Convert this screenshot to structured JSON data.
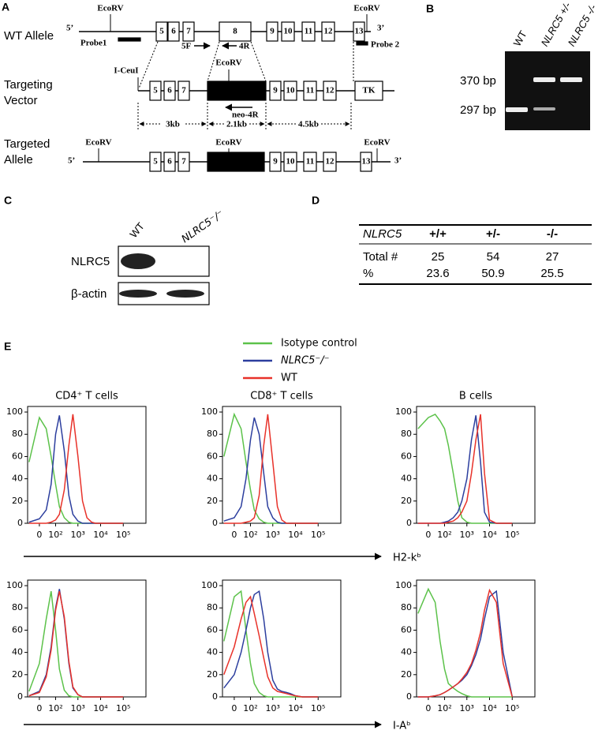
{
  "panel_a": {
    "label": "A",
    "wt_allele": {
      "title": "WT Allele",
      "ends": [
        "5’",
        "3’"
      ],
      "ecorv": [
        "EcoRV",
        "EcoRV"
      ],
      "exons": [
        "5",
        "6",
        "7",
        "8",
        "9",
        "10",
        "11",
        "12",
        "13"
      ],
      "probes": [
        "Probe1",
        "Probe 2"
      ],
      "primers": [
        "5F",
        "4R"
      ]
    },
    "targeting_vector": {
      "title": [
        "Targeting",
        "Vector"
      ],
      "site": "I-CeuI",
      "ecorv": "EcoRV",
      "exons": [
        "5",
        "6",
        "7",
        "9",
        "10",
        "11",
        "12"
      ],
      "tk": "TK",
      "primer": "neo-4R",
      "distances": [
        "3kb",
        "2.1kb",
        "4.5kb"
      ]
    },
    "targeted_allele": {
      "title": [
        "Targeted",
        "Allele"
      ],
      "ends": [
        "5’",
        "3’"
      ],
      "ecorv": [
        "EcoRV",
        "EcoRV",
        "EcoRV"
      ],
      "exons": [
        "5",
        "6",
        "7",
        "9",
        "10",
        "11",
        "12",
        "13"
      ]
    }
  },
  "panel_b": {
    "label": "B",
    "lanes": [
      "WT",
      "NLRC5 +/-",
      "NLRC5 -/-"
    ],
    "sizes": [
      "370 bp",
      "297 bp"
    ]
  },
  "panel_c": {
    "label": "C",
    "lanes": [
      "WT",
      "NLRC5⁻/⁻"
    ],
    "rows": [
      "NLRC5",
      "β-actin"
    ]
  },
  "panel_d": {
    "label": "D",
    "header": [
      "NLRC5",
      "+/+",
      "+/-",
      "-/-"
    ],
    "rows": [
      [
        "Total #",
        25,
        54,
        27
      ],
      [
        "%",
        23.6,
        50.9,
        25.5
      ]
    ]
  },
  "panel_e": {
    "label": "E",
    "xlabels": [
      "H2-kᵇ",
      "I-Aᵇ"
    ]
  },
  "chart_data": [
    {
      "type": "line",
      "title": "CD4⁺ T cells",
      "x_scale": "biexponential",
      "xlim": [
        -60,
        1000000
      ],
      "ylim": [
        0,
        105
      ],
      "xticks": [
        0,
        {
          "value": 100,
          "label": "10²"
        },
        {
          "value": 1000,
          "label": "10³"
        },
        {
          "value": 10000,
          "label": "10⁴"
        },
        {
          "value": 100000,
          "label": "10⁵"
        }
      ],
      "yticks": [
        0,
        20,
        40,
        60,
        80,
        100
      ],
      "x": [
        -50,
        0,
        30,
        60,
        100,
        150,
        250,
        400,
        600,
        1000,
        1600,
        2500,
        4000,
        6000,
        10000,
        20000,
        40000,
        100000
      ],
      "series": [
        {
          "name": "Isotype control",
          "color": "#5cc24a",
          "values": [
            55,
            95,
            85,
            60,
            35,
            15,
            5,
            1,
            0,
            0,
            0,
            0,
            0,
            0,
            0,
            0,
            0,
            0
          ]
        },
        {
          "name": "NLRC5⁻/⁻",
          "color": "#2c3e9e",
          "values": [
            1,
            4,
            12,
            35,
            80,
            97,
            65,
            25,
            8,
            2,
            0,
            0,
            0,
            0,
            0,
            0,
            0,
            0
          ]
        },
        {
          "name": "WT",
          "color": "#e8322a",
          "values": [
            0,
            0,
            0,
            1,
            3,
            8,
            30,
            70,
            98,
            60,
            20,
            5,
            1,
            0,
            0,
            0,
            0,
            0
          ]
        }
      ]
    },
    {
      "type": "line",
      "title": "CD8⁺ T cells",
      "x_scale": "biexponential",
      "xlim": [
        -60,
        1000000
      ],
      "ylim": [
        0,
        105
      ],
      "xticks": [
        0,
        {
          "value": 100,
          "label": "10²"
        },
        {
          "value": 1000,
          "label": "10³"
        },
        {
          "value": 10000,
          "label": "10⁴"
        },
        {
          "value": 100000,
          "label": "10⁵"
        }
      ],
      "yticks": [
        0,
        20,
        40,
        60,
        80,
        100
      ],
      "x": [
        -50,
        0,
        30,
        60,
        100,
        150,
        250,
        400,
        600,
        1000,
        1600,
        2500,
        4000,
        6000,
        10000,
        20000,
        40000,
        100000
      ],
      "series": [
        {
          "name": "Isotype control",
          "color": "#5cc24a",
          "values": [
            60,
            98,
            85,
            55,
            30,
            12,
            4,
            1,
            0,
            0,
            0,
            0,
            0,
            0,
            0,
            0,
            0,
            0
          ]
        },
        {
          "name": "NLRC5⁻/⁻",
          "color": "#2c3e9e",
          "values": [
            2,
            5,
            15,
            40,
            75,
            95,
            80,
            45,
            15,
            5,
            1,
            0,
            0,
            0,
            0,
            0,
            0,
            0
          ]
        },
        {
          "name": "WT",
          "color": "#e8322a",
          "values": [
            0,
            0,
            0,
            1,
            2,
            5,
            25,
            70,
            98,
            55,
            15,
            3,
            0,
            0,
            0,
            0,
            0,
            0
          ]
        }
      ]
    },
    {
      "type": "line",
      "title": "B cells",
      "x_scale": "biexponential",
      "xlim": [
        -60,
        1000000
      ],
      "ylim": [
        0,
        105
      ],
      "xticks": [
        0,
        {
          "value": 100,
          "label": "10²"
        },
        {
          "value": 1000,
          "label": "10³"
        },
        {
          "value": 10000,
          "label": "10⁴"
        },
        {
          "value": 100000,
          "label": "10⁵"
        }
      ],
      "yticks": [
        0,
        20,
        40,
        60,
        80,
        100
      ],
      "x": [
        -50,
        0,
        30,
        60,
        100,
        150,
        250,
        400,
        600,
        1000,
        1600,
        2500,
        4000,
        6000,
        10000,
        20000,
        40000,
        100000
      ],
      "series": [
        {
          "name": "Isotype control",
          "color": "#5cc24a",
          "values": [
            85,
            95,
            98,
            92,
            85,
            70,
            45,
            20,
            5,
            1,
            0,
            0,
            0,
            0,
            0,
            0,
            0,
            0
          ]
        },
        {
          "name": "NLRC5⁻/⁻",
          "color": "#2c3e9e",
          "values": [
            0,
            0,
            0,
            0,
            1,
            2,
            5,
            10,
            20,
            40,
            75,
            97,
            55,
            10,
            1,
            0,
            0,
            0
          ]
        },
        {
          "name": "WT",
          "color": "#e8322a",
          "values": [
            0,
            0,
            0,
            0,
            0,
            1,
            2,
            5,
            10,
            20,
            45,
            75,
            98,
            45,
            3,
            0,
            0,
            0
          ]
        }
      ]
    },
    {
      "type": "line",
      "x_scale": "biexponential",
      "xlim": [
        -60,
        1000000
      ],
      "ylim": [
        0,
        105
      ],
      "xticks": [
        0,
        {
          "value": 100,
          "label": "10²"
        },
        {
          "value": 1000,
          "label": "10³"
        },
        {
          "value": 10000,
          "label": "10⁴"
        },
        {
          "value": 100000,
          "label": "10⁵"
        }
      ],
      "yticks": [
        0,
        20,
        40,
        60,
        80,
        100
      ],
      "x": [
        -50,
        0,
        30,
        60,
        100,
        150,
        250,
        400,
        600,
        1000,
        1600,
        2500,
        4000,
        6000,
        10000,
        20000,
        40000,
        100000
      ],
      "series": [
        {
          "name": "Isotype control",
          "color": "#5cc24a",
          "values": [
            5,
            30,
            70,
            95,
            60,
            25,
            6,
            1,
            0,
            0,
            0,
            0,
            0,
            0,
            0,
            0,
            0,
            0
          ]
        },
        {
          "name": "NLRC5⁻/⁻",
          "color": "#2c3e9e",
          "values": [
            1,
            5,
            20,
            45,
            80,
            97,
            70,
            30,
            8,
            2,
            0,
            0,
            0,
            0,
            0,
            0,
            0,
            0
          ]
        },
        {
          "name": "WT",
          "color": "#e8322a",
          "values": [
            1,
            4,
            18,
            42,
            78,
            95,
            72,
            32,
            9,
            2,
            0,
            0,
            0,
            0,
            0,
            0,
            0,
            0
          ]
        }
      ]
    },
    {
      "type": "line",
      "x_scale": "biexponential",
      "xlim": [
        -60,
        1000000
      ],
      "ylim": [
        0,
        105
      ],
      "xticks": [
        0,
        {
          "value": 100,
          "label": "10²"
        },
        {
          "value": 1000,
          "label": "10³"
        },
        {
          "value": 10000,
          "label": "10⁴"
        },
        {
          "value": 100000,
          "label": "10⁵"
        }
      ],
      "yticks": [
        0,
        20,
        40,
        60,
        80,
        100
      ],
      "x": [
        -50,
        0,
        30,
        60,
        100,
        150,
        250,
        400,
        600,
        1000,
        1600,
        2500,
        4000,
        6000,
        10000,
        20000,
        40000,
        100000
      ],
      "series": [
        {
          "name": "Isotype control",
          "color": "#5cc24a",
          "values": [
            50,
            90,
            95,
            60,
            30,
            12,
            4,
            1,
            0,
            0,
            0,
            0,
            0,
            0,
            0,
            0,
            0,
            0
          ]
        },
        {
          "name": "NLRC5⁻/⁻",
          "color": "#2c3e9e",
          "values": [
            8,
            20,
            40,
            60,
            80,
            92,
            95,
            70,
            40,
            15,
            7,
            5,
            4,
            3,
            1,
            0,
            0,
            0
          ]
        },
        {
          "name": "WT",
          "color": "#e8322a",
          "values": [
            20,
            45,
            70,
            85,
            90,
            75,
            55,
            35,
            18,
            8,
            5,
            4,
            3,
            2,
            1,
            0,
            0,
            0
          ]
        }
      ]
    },
    {
      "type": "line",
      "x_scale": "biexponential",
      "xlim": [
        -60,
        1000000
      ],
      "ylim": [
        0,
        105
      ],
      "xticks": [
        0,
        {
          "value": 100,
          "label": "10²"
        },
        {
          "value": 1000,
          "label": "10³"
        },
        {
          "value": 10000,
          "label": "10⁴"
        },
        {
          "value": 100000,
          "label": "10⁵"
        }
      ],
      "yticks": [
        0,
        20,
        40,
        60,
        80,
        100
      ],
      "x": [
        -50,
        0,
        30,
        60,
        100,
        150,
        250,
        400,
        600,
        1000,
        1600,
        2500,
        4000,
        6000,
        10000,
        20000,
        40000,
        100000
      ],
      "series": [
        {
          "name": "Isotype control",
          "color": "#5cc24a",
          "values": [
            75,
            97,
            85,
            50,
            25,
            12,
            8,
            5,
            3,
            1,
            0,
            0,
            0,
            0,
            0,
            0,
            0,
            0
          ]
        },
        {
          "name": "NLRC5⁻/⁻",
          "color": "#2c3e9e",
          "values": [
            0,
            0,
            1,
            2,
            4,
            6,
            9,
            12,
            15,
            20,
            28,
            38,
            52,
            70,
            90,
            95,
            40,
            0
          ]
        },
        {
          "name": "WT",
          "color": "#e8322a",
          "values": [
            0,
            0,
            1,
            2,
            4,
            6,
            9,
            12,
            16,
            22,
            30,
            42,
            58,
            78,
            96,
            85,
            30,
            0
          ]
        }
      ]
    }
  ]
}
